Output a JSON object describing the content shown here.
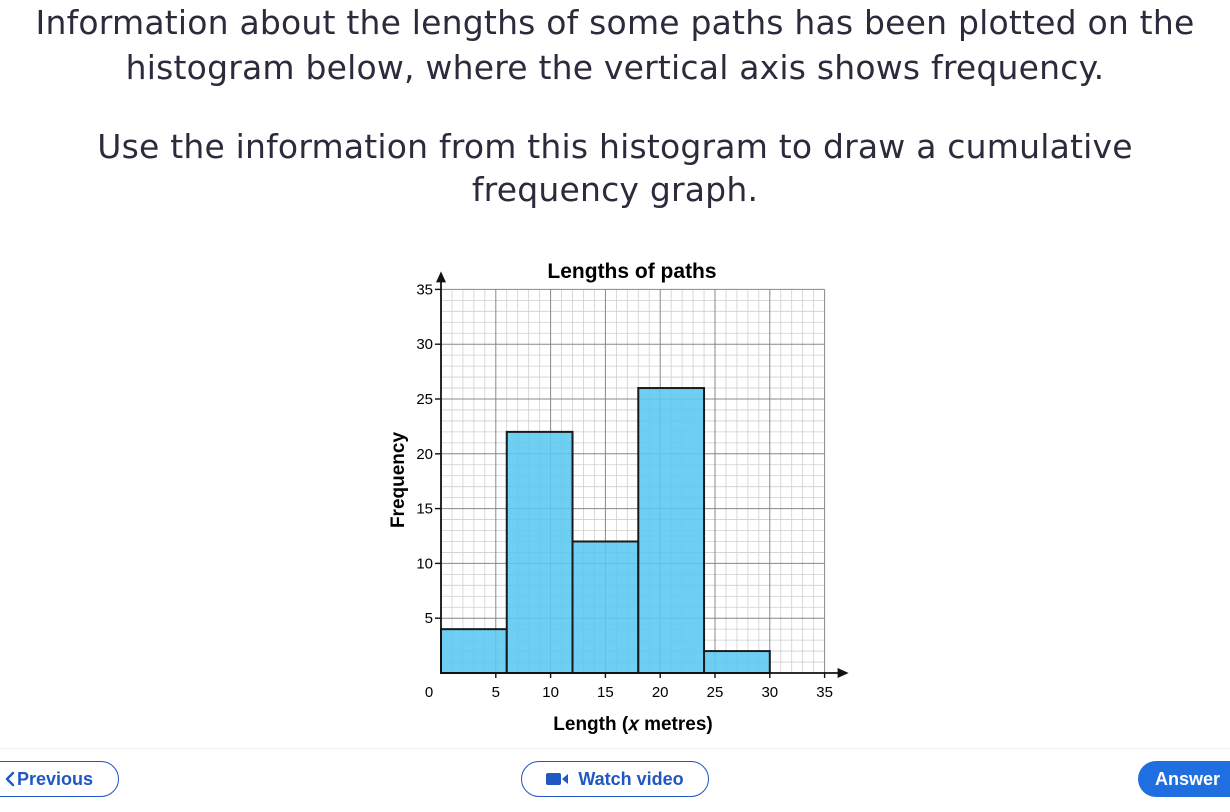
{
  "question": {
    "line1": "Information about the lengths of some paths has been plotted on the",
    "line2": "histogram below, where the vertical axis shows frequency.",
    "line3": "Use the information from this histogram to draw a cumulative",
    "line4": "frequency graph."
  },
  "chart_data": {
    "type": "bar",
    "title": "Lengths of paths",
    "xlabel": "Length (𝑥 metres)",
    "ylabel": "Frequency",
    "xlim": [
      0,
      35
    ],
    "ylim": [
      0,
      35
    ],
    "grid": true,
    "x_ticks": [
      0,
      5,
      10,
      15,
      20,
      25,
      30,
      35
    ],
    "y_ticks": [
      5,
      10,
      15,
      20,
      25,
      30,
      35
    ],
    "bins": [
      {
        "from": 0,
        "to": 6,
        "frequency": 4
      },
      {
        "from": 6,
        "to": 12,
        "frequency": 22
      },
      {
        "from": 12,
        "to": 18,
        "frequency": 12
      },
      {
        "from": 18,
        "to": 24,
        "frequency": 26
      },
      {
        "from": 24,
        "to": 30,
        "frequency": 2
      }
    ],
    "bar_color": "#5bc8f1"
  },
  "nav": {
    "previous_label": "Previous",
    "watch_video_label": "Watch video",
    "answer_label": "Answer"
  },
  "colors": {
    "accent": "#1f57c3",
    "answer_button": "#1f6fe0"
  }
}
